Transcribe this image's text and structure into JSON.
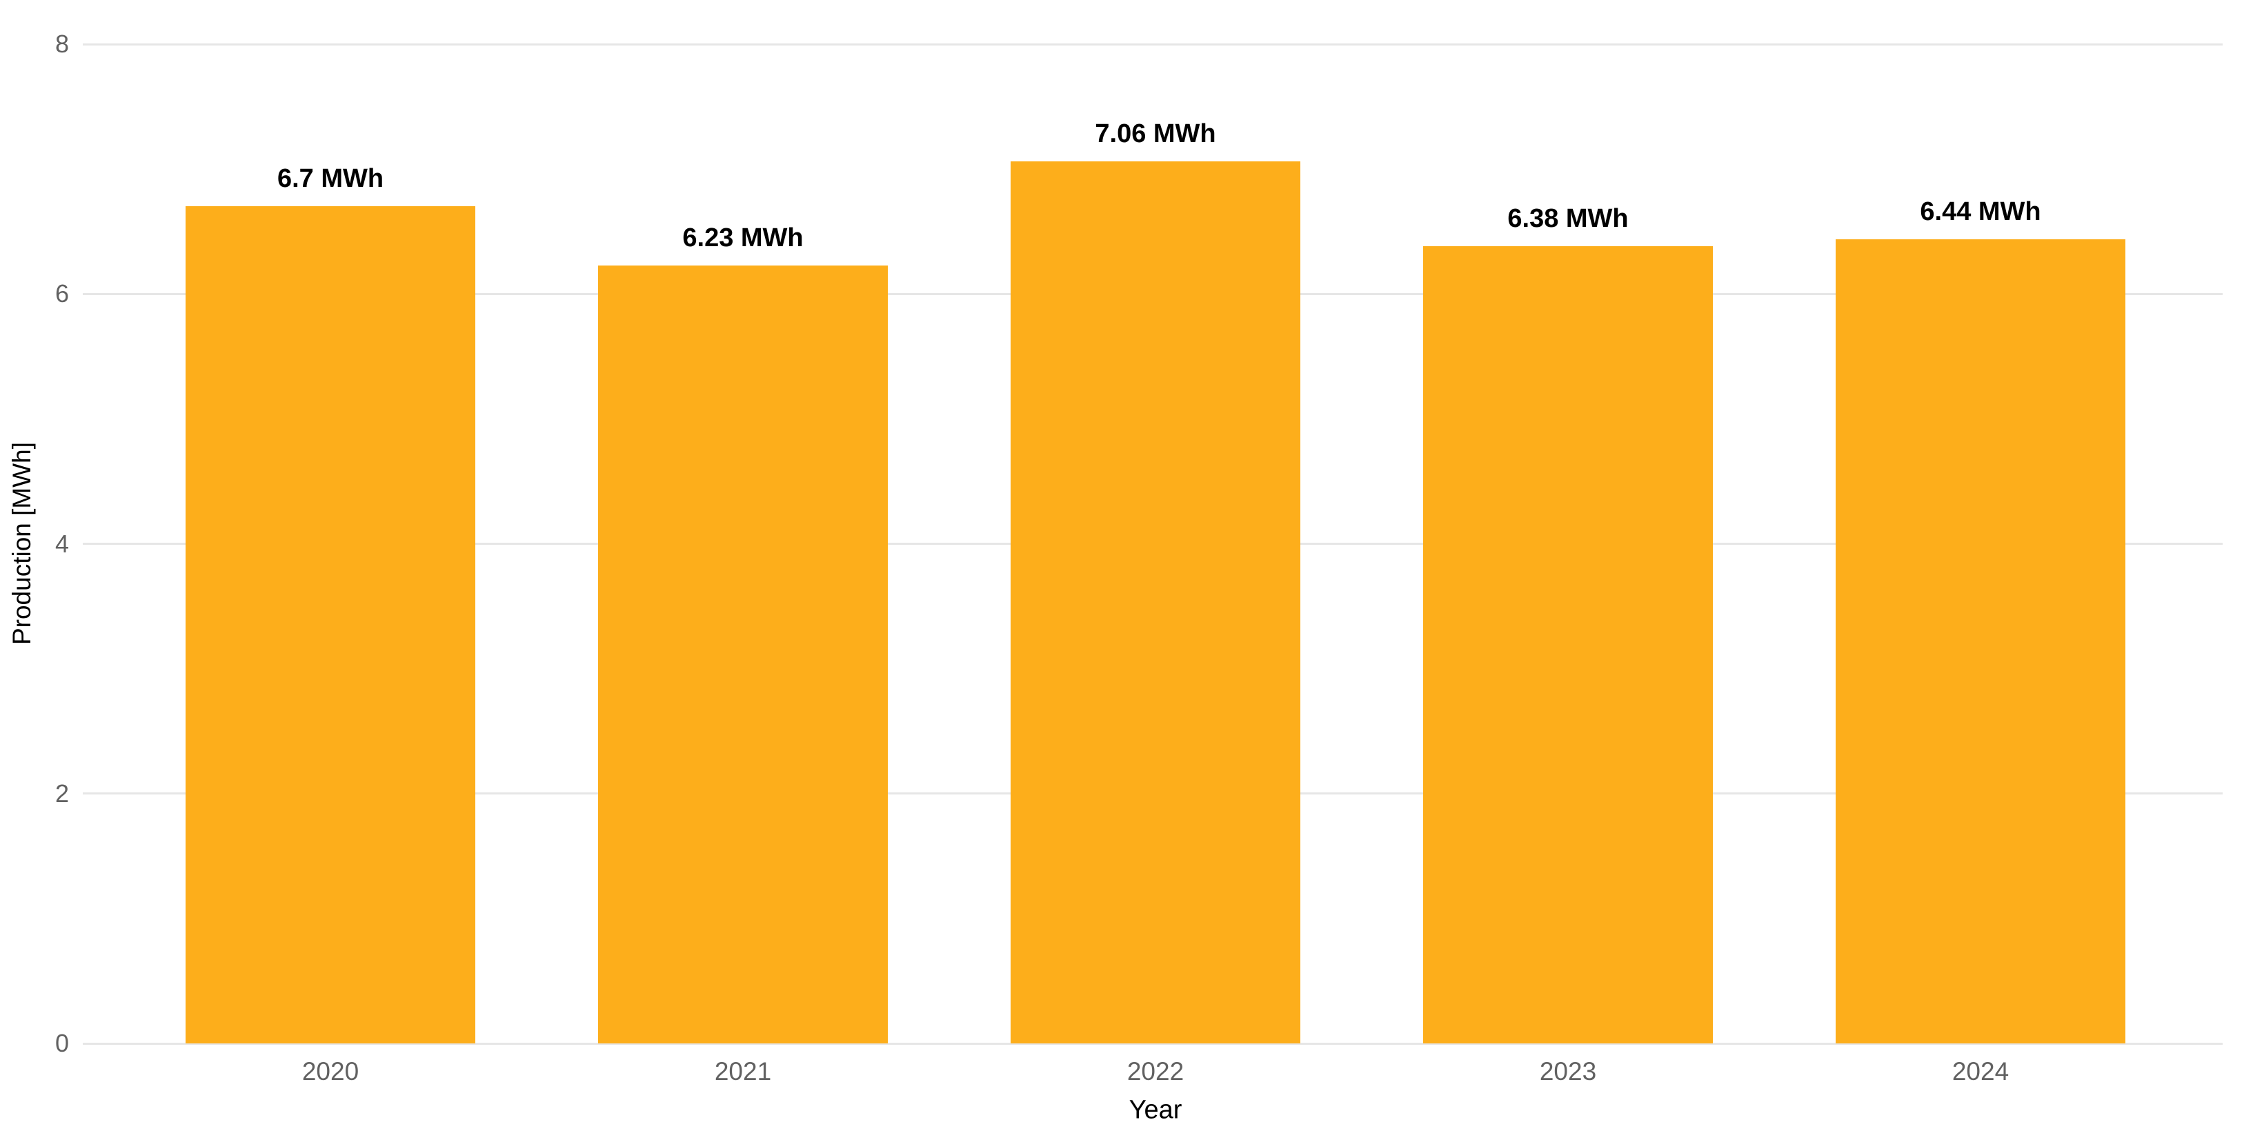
{
  "chart_data": {
    "type": "bar",
    "title": "",
    "xlabel": "Year",
    "ylabel": "Production [MWh]",
    "categories": [
      "2020",
      "2021",
      "2022",
      "2023",
      "2024"
    ],
    "values": [
      6.7,
      6.23,
      7.06,
      6.38,
      6.44
    ],
    "bar_labels": [
      "6.7 MWh",
      "6.23 MWh",
      "7.06 MWh",
      "6.38 MWh",
      "6.44 MWh"
    ],
    "unit": "MWh",
    "ylim": [
      0,
      8
    ],
    "yticks": [
      0,
      2,
      4,
      6,
      8
    ],
    "grid": true,
    "legend_position": "none",
    "bar_color": "#FDAE1B",
    "gridline_color": "#E6E6E6",
    "tick_label_color": "#616161",
    "axis_title_color": "#000000",
    "value_label_color": "#000000"
  }
}
